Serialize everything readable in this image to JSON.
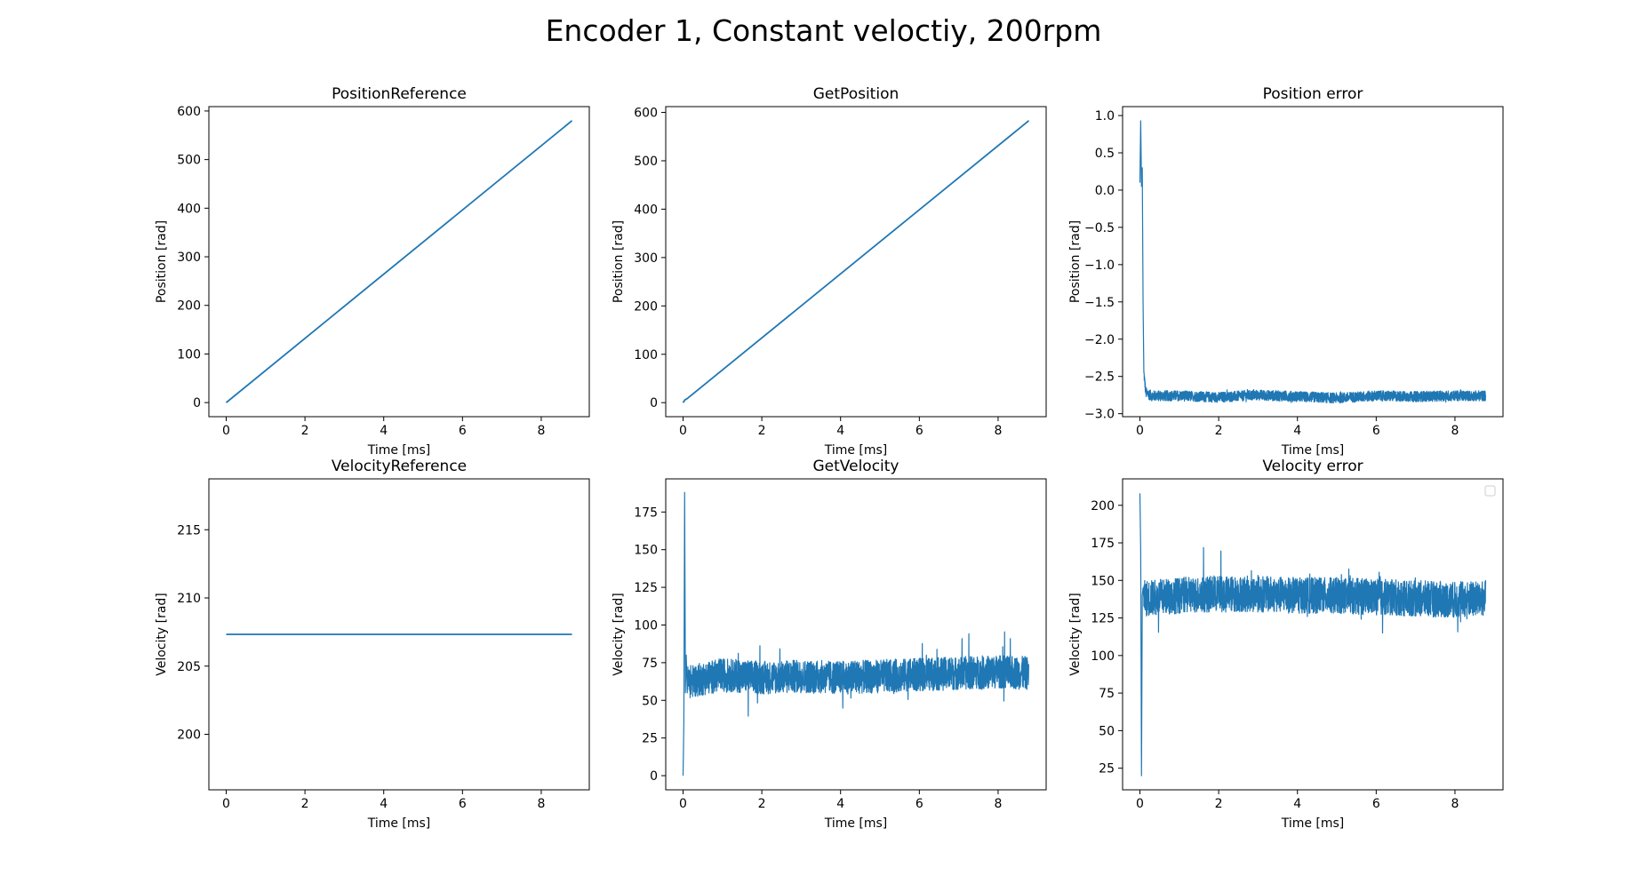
{
  "figure": {
    "suptitle": "Encoder 1, Constant veloctiy, 200rpm"
  },
  "chart_data": [
    {
      "type": "line",
      "title": "PositionReference",
      "xlabel": "Time [ms]",
      "ylabel": "Position [rad]",
      "xlim": [
        -0.44,
        9.22
      ],
      "ylim": [
        -29,
        609
      ],
      "xticks": [
        0,
        2,
        4,
        6,
        8
      ],
      "yticks": [
        0,
        100,
        200,
        300,
        400,
        500,
        600
      ],
      "xticklabels": [
        "0",
        "2",
        "4",
        "6",
        "8"
      ],
      "yticklabels": [
        "0",
        "100",
        "200",
        "300",
        "400",
        "500",
        "600"
      ],
      "color": "#1f77b4",
      "grid": false,
      "series": [
        {
          "x": [
            0,
            8.78
          ],
          "y": [
            0,
            580
          ]
        }
      ]
    },
    {
      "type": "line",
      "title": "GetPosition",
      "xlabel": "Time [ms]",
      "ylabel": "Position [rad]",
      "xlim": [
        -0.44,
        9.22
      ],
      "ylim": [
        -29,
        612
      ],
      "xticks": [
        0,
        2,
        4,
        6,
        8
      ],
      "yticks": [
        0,
        100,
        200,
        300,
        400,
        500,
        600
      ],
      "xticklabels": [
        "0",
        "2",
        "4",
        "6",
        "8"
      ],
      "yticklabels": [
        "0",
        "100",
        "200",
        "300",
        "400",
        "500",
        "600"
      ],
      "color": "#1f77b4",
      "grid": false,
      "series": [
        {
          "x": [
            0,
            0.05,
            0.1,
            8.78
          ],
          "y": [
            0,
            6,
            8,
            583
          ]
        }
      ]
    },
    {
      "type": "line",
      "title": "Position error",
      "xlabel": "Time [ms]",
      "ylabel": "Position [rad]",
      "xlim": [
        -0.44,
        9.22
      ],
      "ylim": [
        -3.04,
        1.12
      ],
      "xticks": [
        0,
        2,
        4,
        6,
        8
      ],
      "yticks": [
        -3.0,
        -2.5,
        -2.0,
        -1.5,
        -1.0,
        -0.5,
        0.0,
        0.5,
        1.0
      ],
      "xticklabels": [
        "0",
        "2",
        "4",
        "6",
        "8"
      ],
      "yticklabels": [
        "−3.0",
        "−2.5",
        "−2.0",
        "−1.5",
        "−1.0",
        "−0.5",
        "0.0",
        "0.5",
        "1.0"
      ],
      "color": "#1f77b4",
      "grid": false,
      "series": [
        {
          "x": [
            0,
            0.02,
            0.04,
            0.06,
            0.08,
            0.1,
            0.15,
            0.3,
            1,
            2,
            3,
            4,
            5,
            6,
            7,
            8,
            8.78
          ],
          "y": [
            0.1,
            0.93,
            0.05,
            0.3,
            -1.5,
            -2.45,
            -2.72,
            -2.76,
            -2.76,
            -2.78,
            -2.75,
            -2.77,
            -2.79,
            -2.76,
            -2.77,
            -2.76,
            -2.76
          ]
        }
      ],
      "noise_band": {
        "x_start": 0.1,
        "x_end": 8.78,
        "center": -2.77,
        "half_width": 0.07,
        "max_spike": 0.04
      }
    },
    {
      "type": "line",
      "title": "VelocityReference",
      "xlabel": "Time [ms]",
      "ylabel": "Velocity [rad]",
      "xlim": [
        -0.44,
        9.22
      ],
      "ylim": [
        195.93,
        218.73
      ],
      "xticks": [
        0,
        2,
        4,
        6,
        8
      ],
      "yticks": [
        200,
        205,
        210,
        215
      ],
      "xticklabels": [
        "0",
        "2",
        "4",
        "6",
        "8"
      ],
      "yticklabels": [
        "200",
        "205",
        "210",
        "215"
      ],
      "color": "#1f77b4",
      "grid": false,
      "series": [
        {
          "x": [
            0,
            8.78
          ],
          "y": [
            207.33,
            207.33
          ]
        }
      ]
    },
    {
      "type": "line",
      "title": "GetVelocity",
      "xlabel": "Time [ms]",
      "ylabel": "Velocity [rad]",
      "xlim": [
        -0.44,
        9.22
      ],
      "ylim": [
        -9.4,
        197
      ],
      "xticks": [
        0,
        2,
        4,
        6,
        8
      ],
      "yticks": [
        0,
        25,
        50,
        75,
        100,
        125,
        150,
        175
      ],
      "xticklabels": [
        "0",
        "2",
        "4",
        "6",
        "8"
      ],
      "yticklabels": [
        "0",
        "25",
        "50",
        "75",
        "100",
        "125",
        "150",
        "175"
      ],
      "color": "#1f77b4",
      "grid": false,
      "series": [
        {
          "x": [
            0,
            0.02,
            0.04,
            0.06,
            0.08,
            0.1,
            1,
            2,
            3,
            4,
            5,
            6,
            7,
            8,
            8.78
          ],
          "y": [
            0,
            35,
            188,
            55,
            80,
            62,
            67,
            65,
            66,
            65,
            66,
            67,
            68,
            69,
            68
          ]
        }
      ],
      "noise_band": {
        "x_start": 0.1,
        "x_end": 8.78,
        "center": 67,
        "half_width": 11,
        "max_spike": 20
      }
    },
    {
      "type": "line",
      "title": "Velocity error",
      "xlabel": "Time [ms]",
      "ylabel": "Velocity [rad]",
      "xlim": [
        -0.44,
        9.22
      ],
      "ylim": [
        10.6,
        217.6
      ],
      "xticks": [
        0,
        2,
        4,
        6,
        8
      ],
      "yticks": [
        25,
        50,
        75,
        100,
        125,
        150,
        175,
        200
      ],
      "xticklabels": [
        "0",
        "2",
        "4",
        "6",
        "8"
      ],
      "yticklabels": [
        "25",
        "50",
        "75",
        "100",
        "125",
        "150",
        "175",
        "200"
      ],
      "color": "#1f77b4",
      "grid": false,
      "legend": "top-right",
      "series": [
        {
          "x": [
            0,
            0.02,
            0.04,
            0.06,
            0.08,
            0.1,
            1,
            2,
            3,
            4,
            5,
            6,
            7,
            8,
            8.78
          ],
          "y": [
            208,
            170,
            20,
            140,
            145,
            138,
            140,
            141,
            141,
            140,
            140,
            139,
            138,
            137,
            138
          ]
        }
      ],
      "noise_band": {
        "x_start": 0.1,
        "x_end": 8.78,
        "center": 139,
        "half_width": 12,
        "max_spike": 22
      }
    }
  ]
}
